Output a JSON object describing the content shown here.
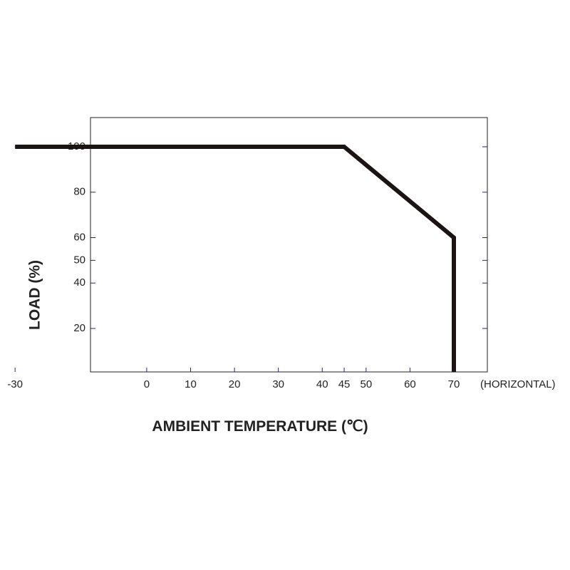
{
  "chart_data": {
    "type": "line",
    "title": "",
    "xlabel": "AMBIENT TEMPERATURE (℃)",
    "ylabel": "LOAD (%)",
    "x_note": "(HORIZONTAL)",
    "xlim": [
      -30,
      70
    ],
    "ylim": [
      0,
      110
    ],
    "x_ticks": [
      -30,
      0,
      10,
      20,
      30,
      40,
      45,
      50,
      60,
      70
    ],
    "y_ticks": [
      20,
      40,
      50,
      60,
      80,
      100
    ],
    "grid": false,
    "series": [
      {
        "x": [
          -30,
          45,
          70,
          70
        ],
        "y": [
          100,
          100,
          60,
          0
        ]
      }
    ],
    "colors": {
      "curve": "#1c1412",
      "frame": "#222222",
      "ticks": "#1f2a6b"
    }
  }
}
